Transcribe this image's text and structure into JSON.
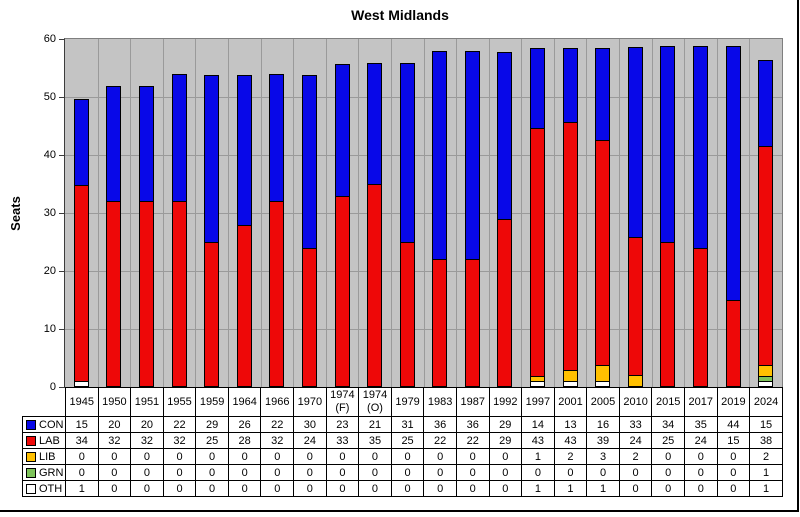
{
  "chart_data": {
    "type": "bar",
    "stacked": true,
    "title": "West Midlands",
    "ylabel": "Seats",
    "xlabel": "",
    "ylim": [
      0,
      60
    ],
    "yticks": [
      0,
      10,
      20,
      30,
      40,
      50,
      60
    ],
    "grid": true,
    "plot_background": "#c4c4c4",
    "gridline_color": "#9a9a9a",
    "legend_position": "left-of-data-table",
    "data_table_shown": true,
    "stack_order_bottom_to_top": [
      "OTH",
      "GRN",
      "LIB",
      "LAB",
      "CON"
    ],
    "categories": [
      "1945",
      "1950",
      "1951",
      "1955",
      "1959",
      "1964",
      "1966",
      "1970",
      "1974 (F)",
      "1974 (O)",
      "1979",
      "1983",
      "1987",
      "1992",
      "1997",
      "2001",
      "2005",
      "2010",
      "2015",
      "2017",
      "2019",
      "2024"
    ],
    "series": [
      {
        "name": "CON",
        "color": "#0808e8",
        "values": [
          15,
          20,
          20,
          22,
          29,
          26,
          22,
          30,
          23,
          21,
          31,
          36,
          36,
          29,
          14,
          13,
          16,
          33,
          34,
          35,
          44,
          15
        ]
      },
      {
        "name": "LAB",
        "color": "#ee0808",
        "values": [
          34,
          32,
          32,
          32,
          25,
          28,
          32,
          24,
          33,
          35,
          25,
          22,
          22,
          29,
          43,
          43,
          39,
          24,
          25,
          24,
          15,
          38
        ]
      },
      {
        "name": "LIB",
        "color": "#ffc000",
        "values": [
          0,
          0,
          0,
          0,
          0,
          0,
          0,
          0,
          0,
          0,
          0,
          0,
          0,
          0,
          1,
          2,
          3,
          2,
          0,
          0,
          0,
          2
        ]
      },
      {
        "name": "GRN",
        "color": "#7dc35a",
        "values": [
          0,
          0,
          0,
          0,
          0,
          0,
          0,
          0,
          0,
          0,
          0,
          0,
          0,
          0,
          0,
          0,
          0,
          0,
          0,
          0,
          0,
          1
        ]
      },
      {
        "name": "OTH",
        "color": "#ffffff",
        "values": [
          1,
          0,
          0,
          0,
          0,
          0,
          0,
          0,
          0,
          0,
          0,
          0,
          0,
          0,
          1,
          1,
          1,
          0,
          0,
          0,
          0,
          1
        ]
      }
    ]
  }
}
